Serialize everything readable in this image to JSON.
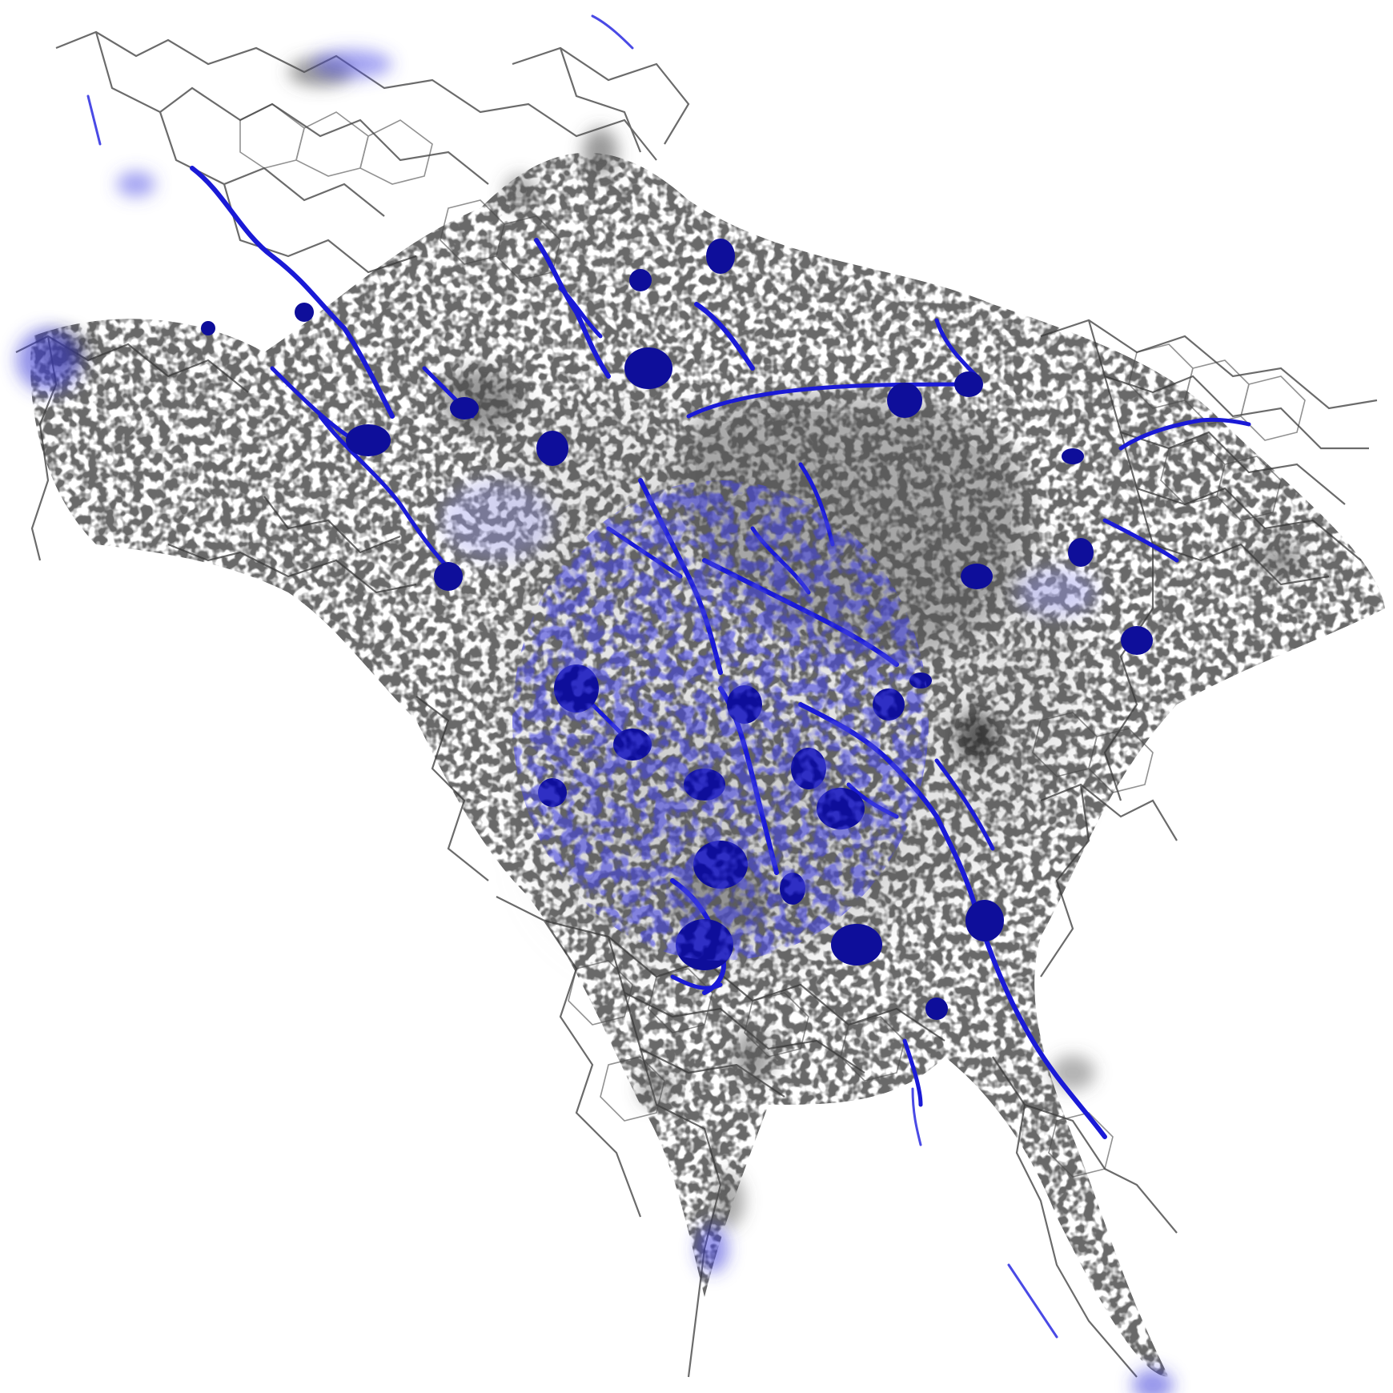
{
  "image": {
    "background_color": "#ffffff",
    "channels": [
      {
        "color": "#1a1a1a"
      },
      {
        "color": "#1414d2"
      }
    ]
  }
}
